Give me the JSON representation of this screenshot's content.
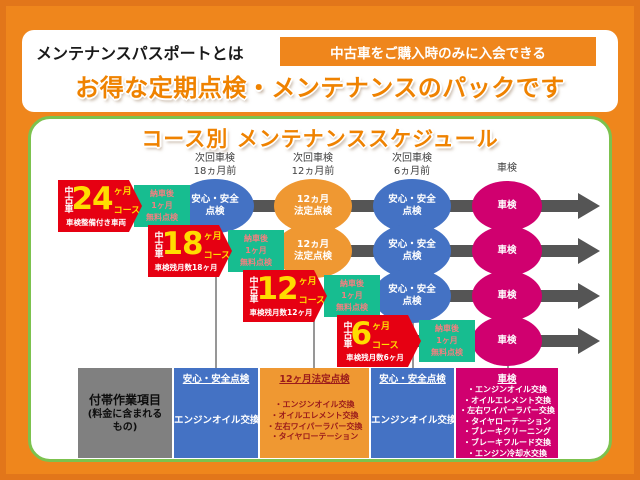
{
  "colors": {
    "background": "#ef861c",
    "frame": "#e2761a",
    "panel_border": "#7cc24e",
    "headline_orange": "#ef8200",
    "badge_red": "#e60012",
    "badge_yellow": "#ffdc00",
    "green_box": "#17bd90",
    "green_box_text": "#f28080",
    "arrow_gray": "#555555",
    "connector_gray": "#979797",
    "node_blue": "#4472c4",
    "node_orange": "#ef9832",
    "node_pink": "#d0006f",
    "table_gray": "#808080",
    "table_dark_red_text": "#9b1b1b"
  },
  "header": {
    "label": "メンテナンスパスポートとは",
    "banner": "中古車をご購入時のみに入会できる",
    "headline": "お得な定期点検・メンテナンスのパックです"
  },
  "schedule": {
    "title": "コース別 メンテナンススケジュール",
    "columns": [
      {
        "lines": [
          "次回車検",
          "18ヵ月前"
        ]
      },
      {
        "lines": [
          "次回車検",
          "12ヵ月前"
        ]
      },
      {
        "lines": [
          "次回車検",
          "6ヵ月前"
        ]
      },
      {
        "lines": [
          "車検"
        ]
      }
    ],
    "free_check": {
      "lines": [
        "納車後",
        "1ヶ月",
        "無料点検"
      ]
    },
    "node_types": {
      "safety": {
        "label_lines": [
          "安心・安全",
          "点検"
        ],
        "color": "#4472c4"
      },
      "legal": {
        "label_lines": [
          "12ヵ月",
          "法定点検"
        ],
        "color": "#ef9832"
      },
      "shaken": {
        "label_lines": [
          "車検"
        ],
        "color": "#d0006f"
      }
    },
    "rows": [
      {
        "prefix": "中古車",
        "number": "24",
        "unit": "ヶ月",
        "suffix": "コース",
        "note": "車検整備付き車両",
        "nodes": [
          {
            "col": 0,
            "type": "safety"
          },
          {
            "col": 1,
            "type": "legal"
          },
          {
            "col": 2,
            "type": "safety"
          },
          {
            "col": 3,
            "type": "shaken"
          }
        ]
      },
      {
        "prefix": "中古車",
        "number": "18",
        "unit": "ヶ月",
        "suffix": "コース",
        "note": "車検残月数18ヶ月",
        "nodes": [
          {
            "col": 1,
            "type": "legal"
          },
          {
            "col": 2,
            "type": "safety"
          },
          {
            "col": 3,
            "type": "shaken"
          }
        ]
      },
      {
        "prefix": "中古車",
        "number": "12",
        "unit": "ヶ月",
        "suffix": "コース",
        "note": "車検残月数12ヶ月",
        "nodes": [
          {
            "col": 2,
            "type": "safety"
          },
          {
            "col": 3,
            "type": "shaken"
          }
        ]
      },
      {
        "prefix": "中古車",
        "number": "6",
        "unit": "ヶ月",
        "suffix": "コース",
        "note": "車検残月数6ヶ月",
        "nodes": [
          {
            "col": 3,
            "type": "shaken"
          }
        ]
      }
    ]
  },
  "table": {
    "row_header": {
      "title": "付帯作業項目",
      "sub1": "(料金に含まれる",
      "sub2": "もの)"
    },
    "columns": [
      {
        "header": "安心・安全点検",
        "bg": "#4472c4",
        "text": "#ffffff",
        "items": [
          "エンジンオイル交換"
        ]
      },
      {
        "header": "12ヶ月法定点検",
        "bg": "#ef9832",
        "text": "#9b1b1b",
        "items": [
          "・エンジンオイル交換",
          "・オイルエレメント交換",
          "・左右ワイパーラバー交換",
          "・タイヤローテーション"
        ]
      },
      {
        "header": "安心・安全点検",
        "bg": "#4472c4",
        "text": "#ffffff",
        "items": [
          "エンジンオイル交換"
        ]
      },
      {
        "header": "車検",
        "bg": "#d0006f",
        "text": "#ffffff",
        "items": [
          "・エンジンオイル交換",
          "・オイルエレメント交換",
          "・左右ワイパーラバー交換",
          "・タイヤローテーション",
          "・ブレーキクリーニング",
          "・ブレーキフルード交換",
          "・エンジン冷却水交換"
        ]
      }
    ]
  }
}
